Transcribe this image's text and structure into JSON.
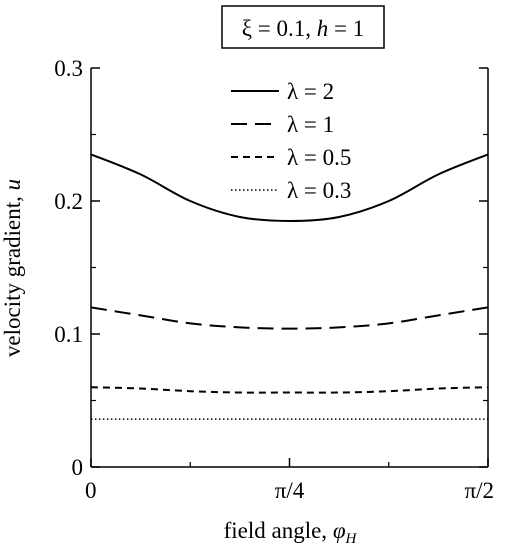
{
  "chart_data": {
    "type": "line",
    "title": "ξ = 0.1, h = 1",
    "xlabel": "field angle, φH",
    "ylabel": "velocity gradient, u",
    "xlim": [
      0,
      1.5708
    ],
    "ylim": [
      0,
      0.3
    ],
    "grid": false,
    "legend_position": "top-center",
    "x_ticks": [
      {
        "value": 0,
        "label": "0"
      },
      {
        "value": 0.7854,
        "label": "π/4"
      },
      {
        "value": 1.5708,
        "label": "π/2"
      }
    ],
    "y_ticks": [
      {
        "value": 0,
        "label": "0"
      },
      {
        "value": 0.1,
        "label": "0.1"
      },
      {
        "value": 0.2,
        "label": "0.2"
      },
      {
        "value": 0.3,
        "label": "0.3"
      }
    ],
    "series": [
      {
        "name": "λ = 2",
        "style": "solid",
        "x": [
          0,
          0.1963,
          0.3927,
          0.589,
          0.7854,
          0.9817,
          1.1781,
          1.3744,
          1.5708
        ],
        "values": [
          0.235,
          0.22,
          0.2,
          0.188,
          0.185,
          0.188,
          0.2,
          0.22,
          0.235
        ]
      },
      {
        "name": "λ = 1",
        "style": "longdash",
        "x": [
          0,
          0.1963,
          0.3927,
          0.589,
          0.7854,
          0.9817,
          1.1781,
          1.3744,
          1.5708
        ],
        "values": [
          0.12,
          0.114,
          0.108,
          0.105,
          0.104,
          0.105,
          0.108,
          0.114,
          0.12
        ]
      },
      {
        "name": "λ = 0.5",
        "style": "shortdash",
        "x": [
          0,
          0.1963,
          0.3927,
          0.589,
          0.7854,
          0.9817,
          1.1781,
          1.3744,
          1.5708
        ],
        "values": [
          0.06,
          0.059,
          0.057,
          0.056,
          0.056,
          0.056,
          0.057,
          0.059,
          0.06
        ]
      },
      {
        "name": "λ = 0.3",
        "style": "dotted",
        "x": [
          0,
          0.7854,
          1.5708
        ],
        "values": [
          0.036,
          0.036,
          0.036
        ]
      }
    ]
  }
}
